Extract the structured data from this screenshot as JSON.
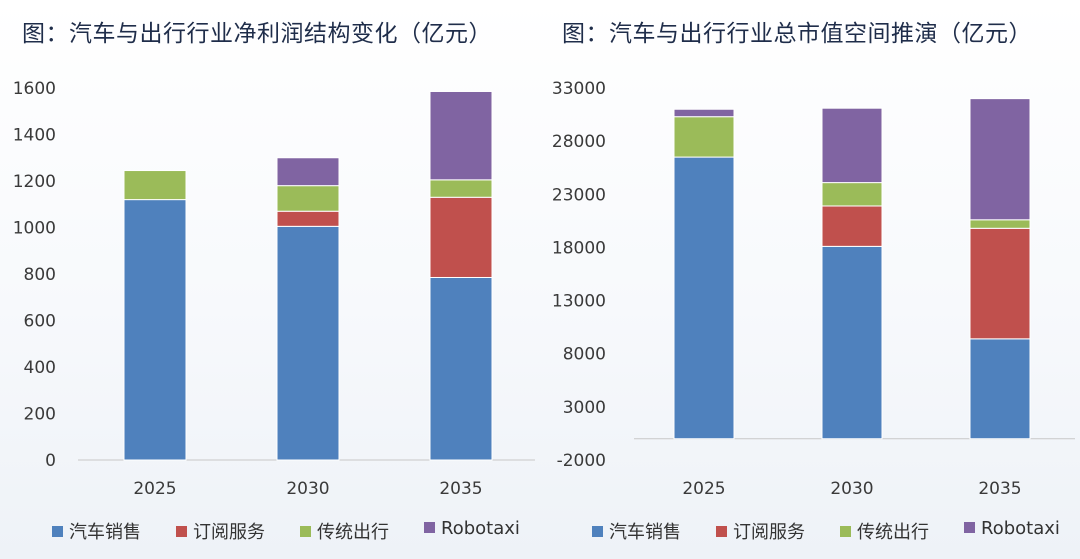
{
  "chart_data": [
    {
      "type": "bar",
      "stacked": true,
      "title": "图：汽车与出行行业净利润结构变化（亿元）",
      "categories": [
        "2025",
        "2030",
        "2035"
      ],
      "ylim": [
        0,
        1600
      ],
      "yticks": [
        0,
        200,
        400,
        600,
        800,
        1000,
        1200,
        1400,
        1600
      ],
      "grid": false,
      "legend_position": "bottom",
      "series": [
        {
          "name": "汽车销售",
          "color": "#4f81bd",
          "values": [
            1120,
            1005,
            785
          ]
        },
        {
          "name": "订阅服务",
          "color": "#c0504d",
          "values": [
            0,
            65,
            345
          ]
        },
        {
          "name": "传统出行",
          "color": "#9bbb59",
          "values": [
            125,
            110,
            75
          ]
        },
        {
          "name": "Robotaxi",
          "color": "#8064a2",
          "values": [
            0,
            120,
            380
          ]
        }
      ]
    },
    {
      "type": "bar",
      "stacked": true,
      "title": "图：汽车与出行行业总市值空间推演（亿元）",
      "categories": [
        "2025",
        "2030",
        "2035"
      ],
      "ylim": [
        -2000,
        33000
      ],
      "yticks": [
        -2000,
        3000,
        8000,
        13000,
        18000,
        23000,
        28000,
        33000
      ],
      "grid": false,
      "legend_position": "bottom",
      "series": [
        {
          "name": "汽车销售",
          "color": "#4f81bd",
          "values": [
            26500,
            18100,
            9400
          ]
        },
        {
          "name": "订阅服务",
          "color": "#c0504d",
          "values": [
            0,
            3800,
            10400
          ]
        },
        {
          "name": "传统出行",
          "color": "#9bbb59",
          "values": [
            3800,
            2200,
            800
          ]
        },
        {
          "name": "Robotaxi",
          "color": "#8064a2",
          "values": [
            700,
            7000,
            11400
          ]
        }
      ]
    }
  ]
}
